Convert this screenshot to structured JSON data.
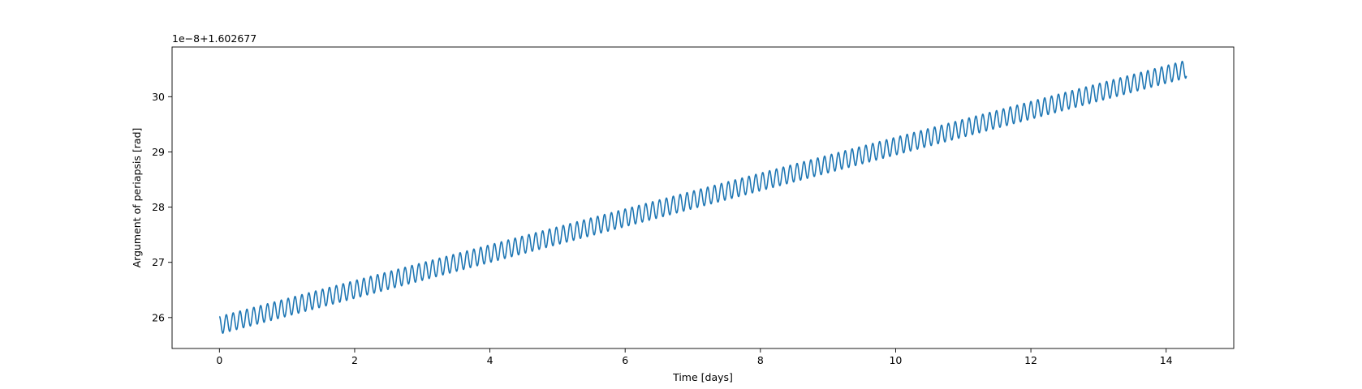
{
  "chart_data": {
    "type": "line",
    "title": "",
    "xlabel": "Time [days]",
    "ylabel": "Argument of periapsis [rad]",
    "y_offset_label": "1e−8+1.602677",
    "xlim": [
      -0.7,
      15.0
    ],
    "ylim": [
      25.44,
      30.9
    ],
    "x_ticks": [
      0,
      2,
      4,
      6,
      8,
      10,
      12,
      14
    ],
    "x_tick_labels": [
      "0",
      "2",
      "4",
      "6",
      "8",
      "10",
      "12",
      "14"
    ],
    "y_ticks": [
      26,
      27,
      28,
      29,
      30
    ],
    "y_tick_labels": [
      "26",
      "27",
      "28",
      "29",
      "30"
    ],
    "grid": false,
    "series": [
      {
        "color": "#1f77b4",
        "x_start": 0.0,
        "x_end": 14.3,
        "trend_start": 25.86,
        "trend_end": 30.5,
        "oscillation_amplitude": 0.16,
        "oscillation_period_days": 0.1017,
        "initial_value": 26.0
      }
    ]
  }
}
